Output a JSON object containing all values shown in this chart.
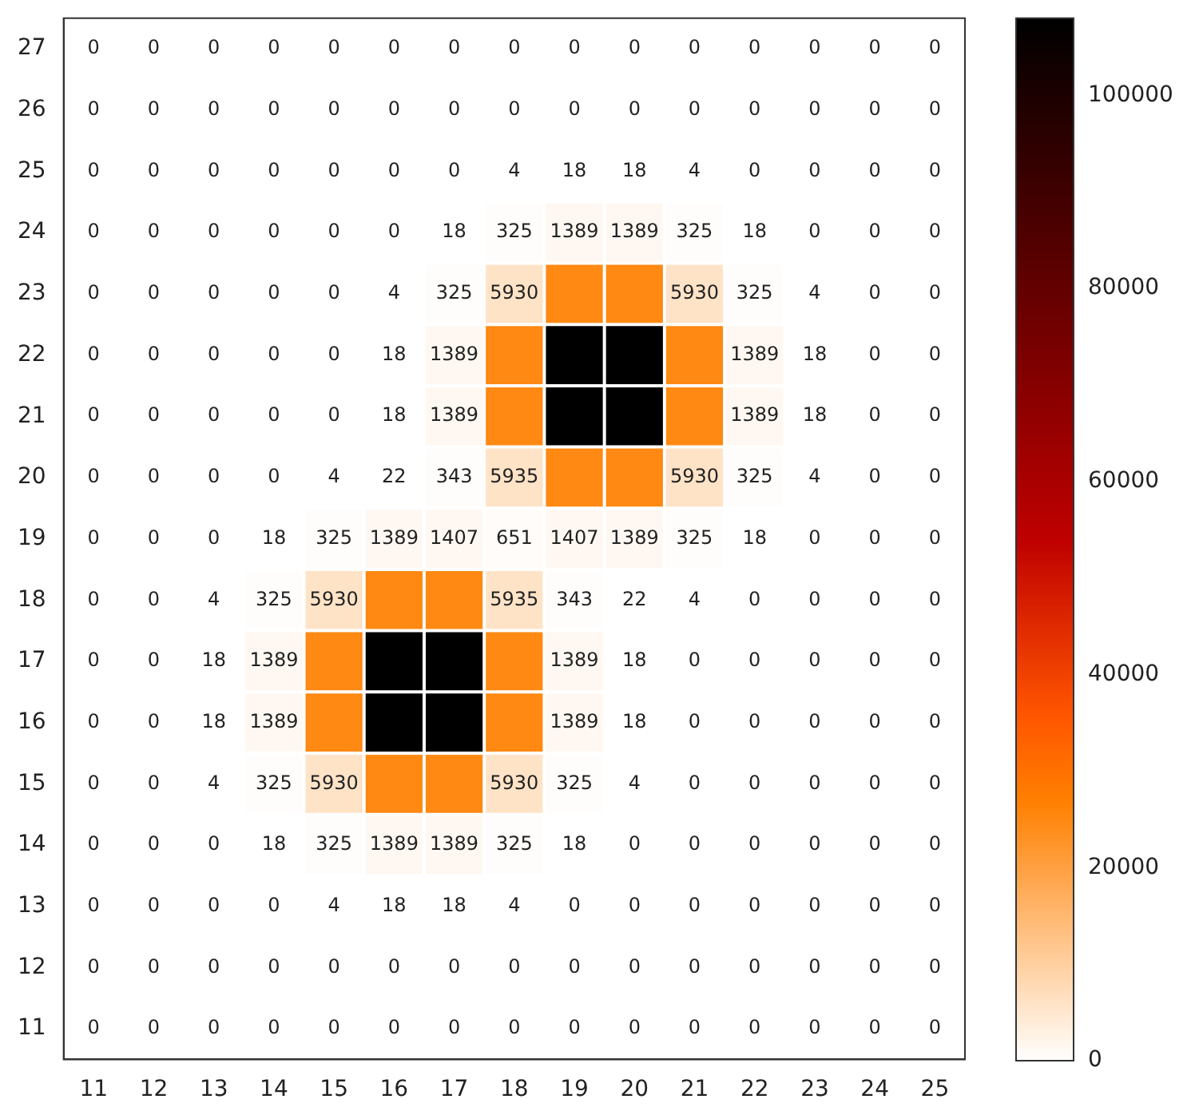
{
  "chart_data": {
    "type": "heatmap",
    "categories": [
      "11",
      "12",
      "13",
      "14",
      "15",
      "16",
      "17",
      "18",
      "19",
      "20",
      "21",
      "22",
      "23",
      "24",
      "25"
    ],
    "y_categories": [
      "27",
      "26",
      "25",
      "24",
      "23",
      "22",
      "21",
      "20",
      "19",
      "18",
      "17",
      "16",
      "15",
      "14",
      "13",
      "12",
      "11"
    ],
    "cells": [
      [
        0,
        0,
        0,
        0,
        0,
        0,
        0,
        0,
        0,
        0,
        0,
        0,
        0,
        0,
        0
      ],
      [
        0,
        0,
        0,
        0,
        0,
        0,
        0,
        0,
        0,
        0,
        0,
        0,
        0,
        0,
        0
      ],
      [
        0,
        0,
        0,
        0,
        0,
        0,
        0,
        4,
        18,
        18,
        4,
        0,
        0,
        0,
        0
      ],
      [
        0,
        0,
        0,
        0,
        0,
        0,
        18,
        325,
        1389,
        1389,
        325,
        18,
        0,
        0,
        0
      ],
      [
        0,
        0,
        0,
        0,
        0,
        4,
        325,
        5930,
        25000,
        25000,
        5930,
        325,
        4,
        0,
        0
      ],
      [
        0,
        0,
        0,
        0,
        0,
        18,
        1389,
        25000,
        108000,
        108000,
        25000,
        1389,
        18,
        0,
        0
      ],
      [
        0,
        0,
        0,
        0,
        0,
        18,
        1389,
        25000,
        108000,
        108000,
        25000,
        1389,
        18,
        0,
        0
      ],
      [
        0,
        0,
        0,
        0,
        4,
        22,
        343,
        5935,
        25000,
        25000,
        5930,
        325,
        4,
        0,
        0
      ],
      [
        0,
        0,
        0,
        18,
        325,
        1389,
        1407,
        651,
        1407,
        1389,
        325,
        18,
        0,
        0,
        0
      ],
      [
        0,
        0,
        4,
        325,
        5930,
        25000,
        25000,
        5935,
        343,
        22,
        4,
        0,
        0,
        0,
        0
      ],
      [
        0,
        0,
        18,
        1389,
        25000,
        108000,
        108000,
        25000,
        1389,
        18,
        0,
        0,
        0,
        0,
        0
      ],
      [
        0,
        0,
        18,
        1389,
        25000,
        108000,
        108000,
        25000,
        1389,
        18,
        0,
        0,
        0,
        0,
        0
      ],
      [
        0,
        0,
        4,
        325,
        5930,
        25000,
        25000,
        5930,
        325,
        4,
        0,
        0,
        0,
        0,
        0
      ],
      [
        0,
        0,
        0,
        18,
        325,
        1389,
        1389,
        325,
        18,
        0,
        0,
        0,
        0,
        0,
        0
      ],
      [
        0,
        0,
        0,
        0,
        4,
        18,
        18,
        4,
        0,
        0,
        0,
        0,
        0,
        0,
        0
      ],
      [
        0,
        0,
        0,
        0,
        0,
        0,
        0,
        0,
        0,
        0,
        0,
        0,
        0,
        0,
        0
      ],
      [
        0,
        0,
        0,
        0,
        0,
        0,
        0,
        0,
        0,
        0,
        0,
        0,
        0,
        0,
        0
      ]
    ],
    "cell_labels": [
      [
        "0",
        "0",
        "0",
        "0",
        "0",
        "0",
        "0",
        "0",
        "0",
        "0",
        "0",
        "0",
        "0",
        "0",
        "0"
      ],
      [
        "0",
        "0",
        "0",
        "0",
        "0",
        "0",
        "0",
        "0",
        "0",
        "0",
        "0",
        "0",
        "0",
        "0",
        "0"
      ],
      [
        "0",
        "0",
        "0",
        "0",
        "0",
        "0",
        "0",
        "4",
        "18",
        "18",
        "4",
        "0",
        "0",
        "0",
        "0"
      ],
      [
        "0",
        "0",
        "0",
        "0",
        "0",
        "0",
        "18",
        "325",
        "1389",
        "1389",
        "325",
        "18",
        "0",
        "0",
        "0"
      ],
      [
        "0",
        "0",
        "0",
        "0",
        "0",
        "4",
        "325",
        "5930",
        null,
        null,
        "5930",
        "325",
        "4",
        "0",
        "0"
      ],
      [
        "0",
        "0",
        "0",
        "0",
        "0",
        "18",
        "1389",
        null,
        null,
        null,
        null,
        "1389",
        "18",
        "0",
        "0"
      ],
      [
        "0",
        "0",
        "0",
        "0",
        "0",
        "18",
        "1389",
        null,
        null,
        null,
        null,
        "1389",
        "18",
        "0",
        "0"
      ],
      [
        "0",
        "0",
        "0",
        "0",
        "4",
        "22",
        "343",
        "5935",
        null,
        null,
        "5930",
        "325",
        "4",
        "0",
        "0"
      ],
      [
        "0",
        "0",
        "0",
        "18",
        "325",
        "1389",
        "1407",
        "651",
        "1407",
        "1389",
        "325",
        "18",
        "0",
        "0",
        "0"
      ],
      [
        "0",
        "0",
        "4",
        "325",
        "5930",
        null,
        null,
        "5935",
        "343",
        "22",
        "4",
        "0",
        "0",
        "0",
        "0"
      ],
      [
        "0",
        "0",
        "18",
        "1389",
        null,
        null,
        null,
        null,
        "1389",
        "18",
        "0",
        "0",
        "0",
        "0",
        "0"
      ],
      [
        "0",
        "0",
        "18",
        "1389",
        null,
        null,
        null,
        null,
        "1389",
        "18",
        "0",
        "0",
        "0",
        "0",
        "0"
      ],
      [
        "0",
        "0",
        "4",
        "325",
        "5930",
        null,
        null,
        "5930",
        "325",
        "4",
        "0",
        "0",
        "0",
        "0",
        "0"
      ],
      [
        "0",
        "0",
        "0",
        "18",
        "325",
        "1389",
        "1389",
        "325",
        "18",
        "0",
        "0",
        "0",
        "0",
        "0",
        "0"
      ],
      [
        "0",
        "0",
        "0",
        "0",
        "4",
        "18",
        "18",
        "4",
        "0",
        "0",
        "0",
        "0",
        "0",
        "0",
        "0"
      ],
      [
        "0",
        "0",
        "0",
        "0",
        "0",
        "0",
        "0",
        "0",
        "0",
        "0",
        "0",
        "0",
        "0",
        "0",
        "0"
      ],
      [
        "0",
        "0",
        "0",
        "0",
        "0",
        "0",
        "0",
        "0",
        "0",
        "0",
        "0",
        "0",
        "0",
        "0",
        "0"
      ]
    ],
    "clim": [
      0,
      108000
    ],
    "cticks": [
      0,
      20000,
      40000,
      60000,
      80000,
      100000
    ]
  }
}
